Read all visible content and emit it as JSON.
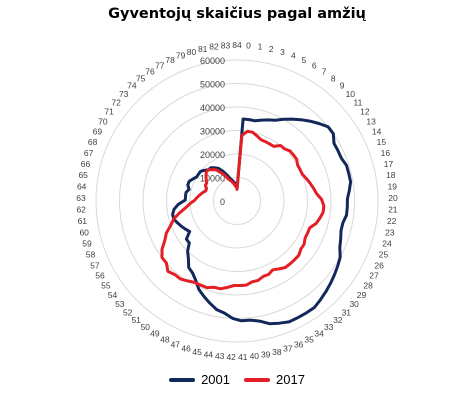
{
  "chart_data": {
    "type": "radar",
    "title": "Gyventojų skaičius pagal amžių",
    "categories": [
      "84",
      "0",
      "1",
      "2",
      "3",
      "4",
      "5",
      "6",
      "7",
      "8",
      "9",
      "10",
      "11",
      "12",
      "13",
      "14",
      "15",
      "16",
      "17",
      "18",
      "19",
      "20",
      "21",
      "22",
      "23",
      "24",
      "25",
      "26",
      "27",
      "28",
      "29",
      "30",
      "31",
      "32",
      "33",
      "34",
      "35",
      "36",
      "37",
      "38",
      "39",
      "40",
      "41",
      "42",
      "43",
      "44",
      "45",
      "46",
      "47",
      "48",
      "49",
      "50",
      "51",
      "52",
      "53",
      "54",
      "55",
      "56",
      "57",
      "58",
      "59",
      "60",
      "61",
      "62",
      "63",
      "64",
      "65",
      "66",
      "67",
      "68",
      "69",
      "70",
      "71",
      "72",
      "73",
      "74",
      "75",
      "76",
      "77",
      "78",
      "79",
      "80",
      "81",
      "82",
      "83"
    ],
    "radial_ticks": [
      "0",
      "10000",
      "20000",
      "30000",
      "40000",
      "50000",
      "60000"
    ],
    "rmax": 60000,
    "series": [
      {
        "name": "2001",
        "color": "#13285a",
        "values": [
          5000,
          35000,
          35000,
          35000,
          36000,
          37000,
          38000,
          40000,
          42000,
          44000,
          46000,
          48000,
          50000,
          50000,
          48000,
          48000,
          48000,
          49000,
          49000,
          49000,
          48000,
          47000,
          47000,
          47000,
          46000,
          46000,
          47000,
          48000,
          50000,
          51000,
          52000,
          53000,
          54000,
          55000,
          56000,
          56000,
          56000,
          56000,
          55000,
          54000,
          52000,
          51000,
          51000,
          50000,
          48000,
          47000,
          45000,
          43000,
          41000,
          38000,
          36000,
          35000,
          32000,
          30000,
          27000,
          27000,
          24000,
          25000,
          26000,
          27000,
          28000,
          28000,
          27000,
          25000,
          22000,
          22000,
          22000,
          21000,
          22000,
          22000,
          21000,
          20000,
          20000,
          20000,
          19000,
          18000,
          18000,
          17000,
          16000,
          14000,
          12000,
          10000,
          9000,
          8000,
          7000
        ]
      },
      {
        "name": "2017",
        "color": "#e31e24",
        "values": [
          5000,
          28000,
          30000,
          30000,
          29000,
          28000,
          28000,
          28000,
          28000,
          30000,
          30000,
          31000,
          31000,
          31000,
          30000,
          30000,
          30000,
          31000,
          32000,
          33000,
          34000,
          36000,
          37000,
          37000,
          36000,
          35000,
          33000,
          33000,
          33000,
          34000,
          34000,
          35000,
          35000,
          35000,
          35000,
          34000,
          33000,
          34000,
          34000,
          35000,
          35000,
          36000,
          36000,
          36000,
          37000,
          38000,
          38000,
          39000,
          39000,
          39000,
          40000,
          41000,
          41000,
          42000,
          40000,
          40000,
          38000,
          35000,
          33000,
          30000,
          28000,
          25000,
          22000,
          20000,
          18000,
          17000,
          16000,
          15000,
          14000,
          14000,
          15000,
          15000,
          16000,
          17000,
          18000,
          18000,
          17000,
          16000,
          14000,
          12000,
          10000,
          9000,
          8000,
          7000,
          6000
        ]
      }
    ],
    "legend_position": "bottom"
  }
}
